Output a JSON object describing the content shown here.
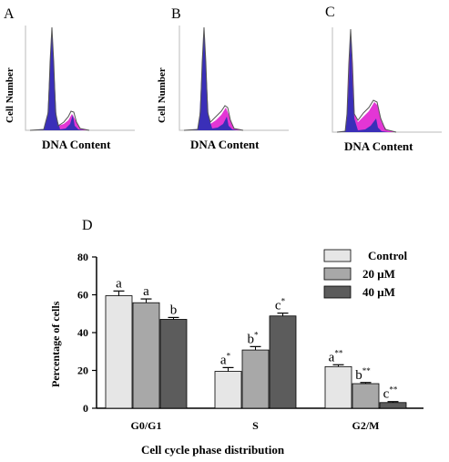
{
  "panels": [
    {
      "letter": "A",
      "ylabel": "Cell Number",
      "xlabel": "DNA Content"
    },
    {
      "letter": "B",
      "ylabel": "Cell Number",
      "xlabel": "DNA Content"
    },
    {
      "letter": "C",
      "ylabel": "",
      "xlabel": "DNA Content"
    }
  ],
  "colors": {
    "g1_peak": "#3a2fb8",
    "s_phase": "#e020d0",
    "outline": "#555555",
    "control": "#e6e6e6",
    "m20": "#a8a8a8",
    "m40": "#5c5c5c"
  },
  "chart_data": {
    "type": "bar",
    "panel_letter": "D",
    "categories": [
      "G0/G1",
      "S",
      "G2/M"
    ],
    "series": [
      {
        "name": "Control",
        "values": [
          59.5,
          19.5,
          22.0
        ],
        "errors": [
          2.5,
          2.0,
          1.0
        ],
        "labels": [
          "a",
          "a*",
          "a**"
        ]
      },
      {
        "name": "20 μM",
        "values": [
          55.8,
          30.8,
          13.0
        ],
        "errors": [
          2.0,
          1.8,
          0.6
        ],
        "labels": [
          "a",
          "b*",
          "b**"
        ]
      },
      {
        "name": "40 μM",
        "values": [
          47.0,
          48.8,
          3.0
        ],
        "errors": [
          1.0,
          1.5,
          0.5
        ],
        "labels": [
          "b",
          "c*",
          "c**"
        ]
      }
    ],
    "xlabel": "Cell cycle phase distribution",
    "ylabel": "Percentage of cells",
    "ylim": [
      0,
      80
    ],
    "yticks": [
      0,
      20,
      40,
      60,
      80
    ],
    "legend_position": "top-right"
  }
}
